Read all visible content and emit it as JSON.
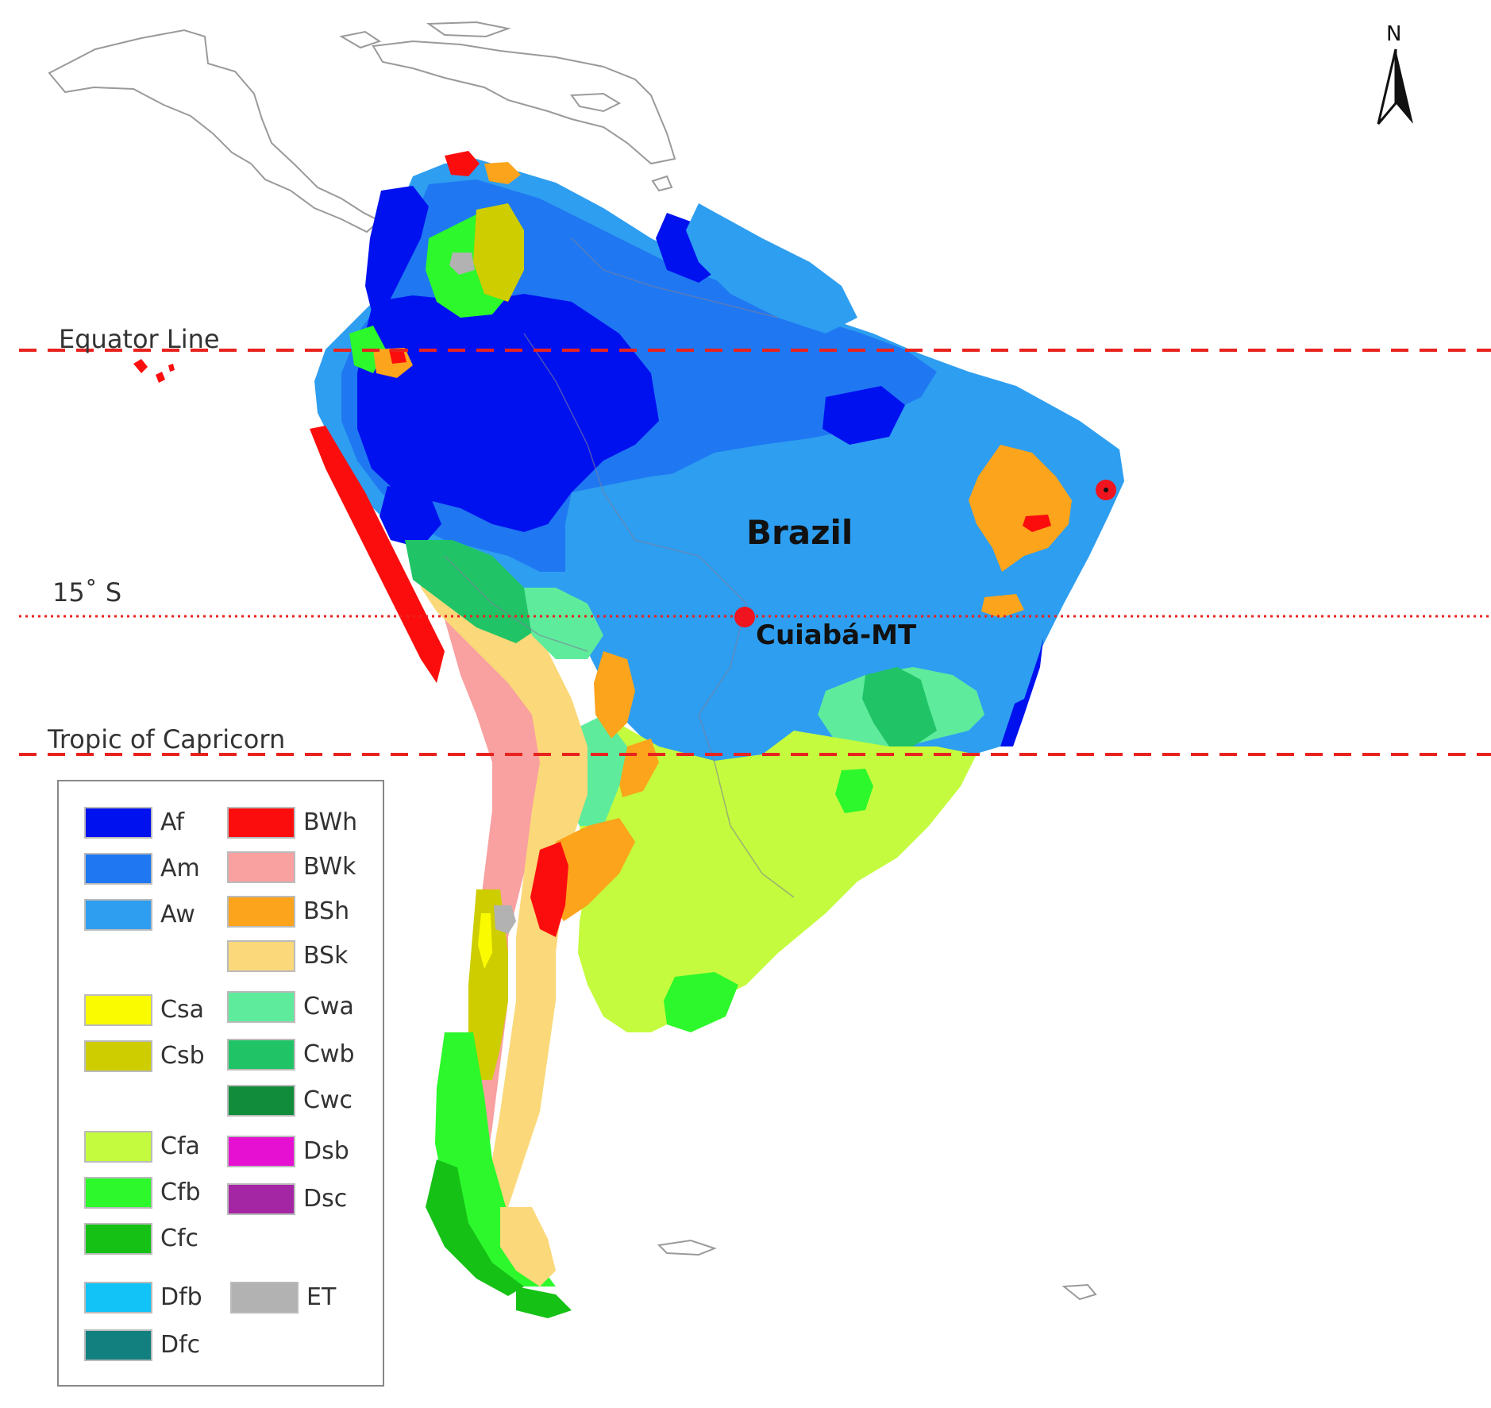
{
  "lines": {
    "equator": "Equator Line",
    "fifteen_south": "15˚ S",
    "capricorn": "Tropic of  Capricorn"
  },
  "places": {
    "country": "Brazil",
    "city": "Cuiabá-MT"
  },
  "north_arrow": {
    "letter": "N",
    "icon": "north-arrow-icon"
  },
  "line_color": "#e8231f",
  "marker_color": "#f0141e",
  "legend": [
    {
      "code": "Af",
      "color": "#0011f0"
    },
    {
      "code": "Am",
      "color": "#1f78f2"
    },
    {
      "code": "Aw",
      "color": "#2e9ef0"
    },
    {
      "code": "BWh",
      "color": "#fc0d0d"
    },
    {
      "code": "BWk",
      "color": "#f9a0a0"
    },
    {
      "code": "BSh",
      "color": "#fba41c"
    },
    {
      "code": "BSk",
      "color": "#fbd879"
    },
    {
      "code": "Csa",
      "color": "#fbfb00"
    },
    {
      "code": "Csb",
      "color": "#cdcd00"
    },
    {
      "code": "Cwa",
      "color": "#5eec9c"
    },
    {
      "code": "Cwb",
      "color": "#20c467"
    },
    {
      "code": "Cwc",
      "color": "#108c3a"
    },
    {
      "code": "Cfa",
      "color": "#c4fb3e"
    },
    {
      "code": "Cfb",
      "color": "#2cf82c"
    },
    {
      "code": "Cfc",
      "color": "#16c116"
    },
    {
      "code": "Dsb",
      "color": "#e610d2"
    },
    {
      "code": "Dsc",
      "color": "#a526a4"
    },
    {
      "code": "Dfb",
      "color": "#12c3f8"
    },
    {
      "code": "Dfc",
      "color": "#138080"
    },
    {
      "code": "ET",
      "color": "#b2b2b2"
    }
  ]
}
